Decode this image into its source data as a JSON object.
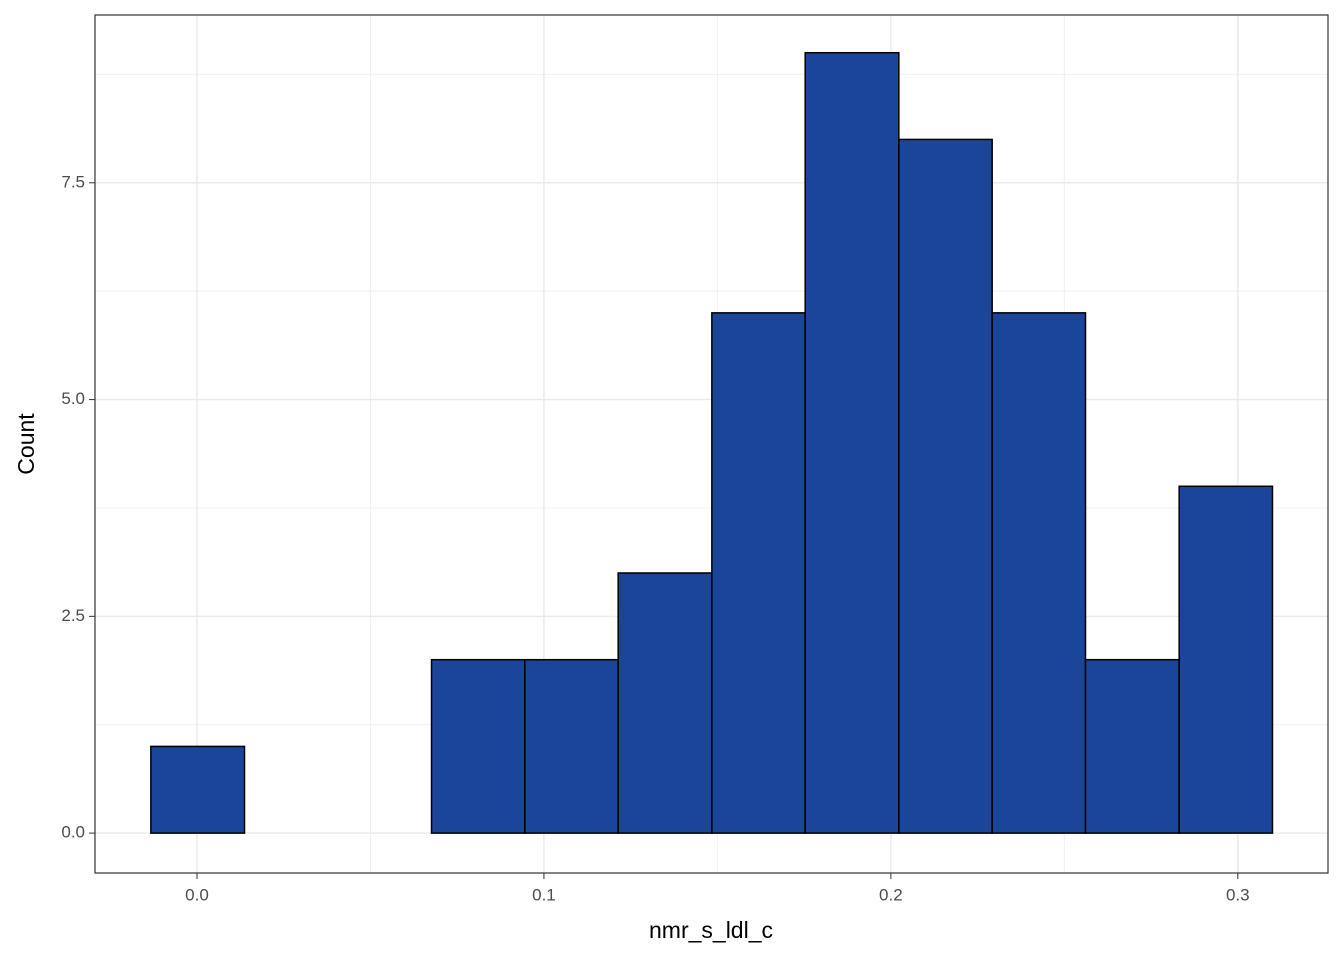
{
  "chart_data": {
    "type": "histogram",
    "x_label": "nmr_s_ldl_c",
    "y_label": "Count",
    "bins": [
      -0.0133,
      0.0137,
      0.0406,
      0.0676,
      0.0945,
      0.1214,
      0.1484,
      0.1753,
      0.2023,
      0.2292,
      0.2561,
      0.2831,
      0.31
    ],
    "counts": [
      1,
      0,
      0,
      2,
      2,
      3,
      6,
      9,
      8,
      6,
      2,
      4
    ],
    "color": "#1a4599",
    "edge_color": "#000000",
    "xlim": [
      -0.0294,
      0.326
    ],
    "ylim": [
      -0.46,
      9.435
    ],
    "xticks": [
      {
        "value": 0,
        "label": "0.0"
      },
      0.1,
      0.2,
      0.3
    ],
    "yticks": [
      {
        "value": 0,
        "label": "0.0"
      },
      2.5,
      {
        "value": 5,
        "label": "5.0"
      },
      7.5
    ],
    "x_minor_grid": [
      0.05,
      0.15,
      0.25
    ],
    "y_minor_grid": [
      1.25,
      3.75,
      6.25,
      8.75
    ],
    "grid": true
  }
}
